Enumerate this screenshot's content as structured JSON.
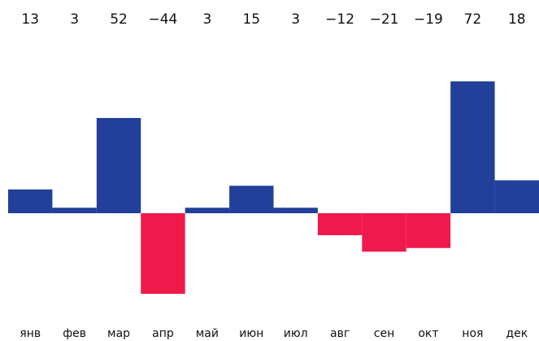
{
  "chart_data": {
    "type": "bar",
    "categories": [
      "янв",
      "фев",
      "мар",
      "апр",
      "май",
      "июн",
      "июл",
      "авг",
      "сен",
      "окт",
      "ноя",
      "дек"
    ],
    "values": [
      13,
      3,
      52,
      -44,
      3,
      15,
      3,
      -12,
      -21,
      -19,
      72,
      18
    ],
    "value_labels": [
      "13",
      "3",
      "52",
      "−44",
      "3",
      "15",
      "3",
      "−12",
      "−21",
      "−19",
      "72",
      "18"
    ],
    "positive_color": "#22409a",
    "negative_color": "#f0194b"
  }
}
